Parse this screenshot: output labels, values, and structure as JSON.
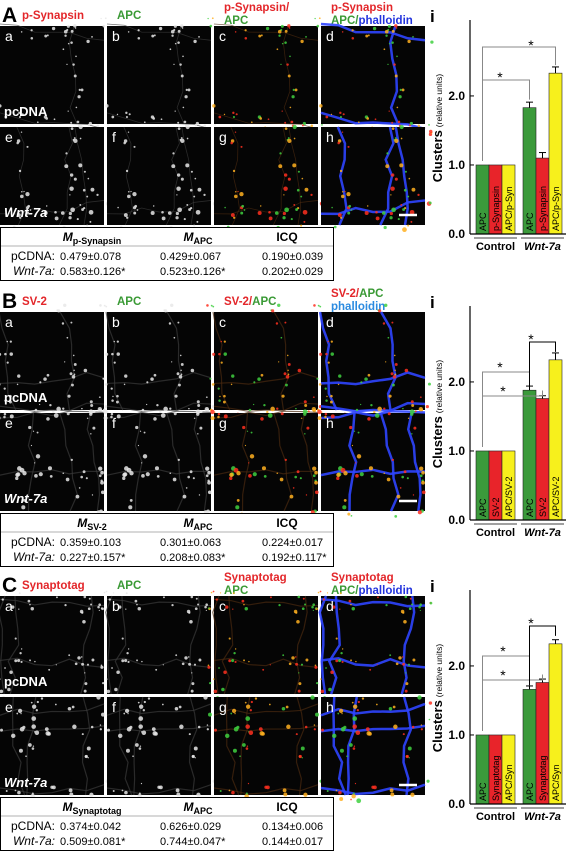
{
  "panels": [
    {
      "letter": "A",
      "chart_letter": "i",
      "columns": [
        [
          [
            {
              "text": "p-Synapsin",
              "color": "#e3262a"
            }
          ]
        ],
        [
          [
            {
              "text": "APC",
              "color": "#3a9a35"
            }
          ]
        ],
        [
          [
            {
              "text": "p-Synapsin/",
              "color": "#e3262a"
            }
          ],
          [
            {
              "text": "APC",
              "color": "#3a9a35"
            }
          ]
        ],
        [
          [
            {
              "text": "p-Synapsin",
              "color": "#e3262a"
            }
          ],
          [
            {
              "text": "APC/",
              "color": "#3a9a35"
            },
            {
              "text": "phalloidin",
              "color": "#2233dd"
            }
          ]
        ]
      ],
      "images": [
        "a",
        "b",
        "c",
        "d",
        "e",
        "f",
        "g",
        "h"
      ],
      "row_labels": [
        "pcDNA",
        "Wnt-7a"
      ],
      "table": {
        "header": [
          [
            "M",
            "p-Synapsin"
          ],
          [
            "M",
            "APC"
          ],
          [
            "ICQ"
          ]
        ],
        "rows": [
          [
            "pCDNA:",
            "0.479±0.078",
            "0.429±0.067",
            "0.190±0.039"
          ],
          [
            "Wnt-7a:",
            "0.583±0.126*",
            "0.523±0.126*",
            "0.202±0.029"
          ]
        ]
      }
    },
    {
      "letter": "B",
      "chart_letter": "i",
      "columns": [
        [
          [
            {
              "text": "SV-2",
              "color": "#e3262a"
            }
          ]
        ],
        [
          [
            {
              "text": "APC",
              "color": "#3a9a35"
            }
          ]
        ],
        [
          [
            {
              "text": "SV-2/",
              "color": "#e3262a"
            },
            {
              "text": "APC",
              "color": "#3a9a35"
            }
          ]
        ],
        [
          [
            {
              "text": "SV-2/",
              "color": "#e3262a"
            },
            {
              "text": "APC",
              "color": "#3a9a35"
            }
          ],
          [
            {
              "text": "phalloidin",
              "color": "#2b8be0"
            }
          ]
        ]
      ],
      "images": [
        "a",
        "b",
        "c",
        "d",
        "e",
        "f",
        "g",
        "h"
      ],
      "row_labels": [
        "pcDNA",
        "Wnt-7a"
      ],
      "table": {
        "header": [
          [
            "M",
            "SV-2"
          ],
          [
            "M",
            "APC"
          ],
          [
            "ICQ"
          ]
        ],
        "rows": [
          [
            "pCDNA:",
            "0.359±0.103",
            "0.301±0.063",
            "0.224±0.017"
          ],
          [
            "Wnt-7a:",
            "0.227±0.157*",
            "0.208±0.083*",
            "0.192±0.117*"
          ]
        ]
      }
    },
    {
      "letter": "C",
      "chart_letter": "i",
      "columns": [
        [
          [
            {
              "text": "Synaptotag",
              "color": "#e3262a"
            }
          ]
        ],
        [
          [
            {
              "text": "APC",
              "color": "#3a9a35"
            }
          ]
        ],
        [
          [
            {
              "text": "Synaptotag",
              "color": "#e3262a"
            }
          ],
          [
            {
              "text": "APC",
              "color": "#3a9a35"
            }
          ]
        ],
        [
          [
            {
              "text": "Synaptotag",
              "color": "#e3262a"
            }
          ],
          [
            {
              "text": "APC/",
              "color": "#3a9a35"
            },
            {
              "text": "phalloidin",
              "color": "#2233dd"
            }
          ]
        ]
      ],
      "images": [
        "a",
        "b",
        "c",
        "d",
        "e",
        "f",
        "g",
        "h"
      ],
      "row_labels": [
        "pcDNA",
        "Wnt-7a"
      ],
      "table": {
        "header": [
          [
            "M",
            "Synaptotag"
          ],
          [
            "M",
            "APC"
          ],
          [
            "ICQ"
          ]
        ],
        "rows": [
          [
            "pCDNA:",
            "0.374±0.042",
            "0.626±0.029",
            "0.134±0.006"
          ],
          [
            "Wnt-7a:",
            "0.509±0.081*",
            "0.744±0.047*",
            "0.144±0.017"
          ]
        ]
      }
    }
  ],
  "chart_data": [
    {
      "type": "bar",
      "ylabel": "Clusters",
      "ylabel_unit": "(relative units)",
      "categories": [
        "Control",
        "Wnt-7a"
      ],
      "series": [
        {
          "name": "APC",
          "color": "#3b9a3b",
          "values": [
            1.0,
            1.83
          ],
          "errors": [
            null,
            0.08
          ]
        },
        {
          "name": "p-Synapsin",
          "color": "#e8242a",
          "values": [
            1.0,
            1.1
          ],
          "errors": [
            null,
            0.08
          ]
        },
        {
          "name": "APC/p-Syn",
          "color": "#f7f01c",
          "values": [
            1.0,
            2.33
          ],
          "errors": [
            null,
            0.09
          ]
        }
      ],
      "ylim": [
        0,
        3.1
      ],
      "yticks": [
        {
          "value": 0,
          "label": "0.0"
        },
        {
          "value": 1,
          "label": "1.0"
        },
        {
          "value": 2,
          "label": "2.0"
        }
      ],
      "annotations": [
        "*",
        "*"
      ]
    },
    {
      "type": "bar",
      "ylabel": "Clusters",
      "ylabel_unit": "(relative units)",
      "categories": [
        "Control",
        "Wnt-7a"
      ],
      "series": [
        {
          "name": "APC",
          "color": "#3b9a3b",
          "values": [
            1.0,
            1.88
          ],
          "errors": [
            null,
            0.06
          ]
        },
        {
          "name": "SV-2",
          "color": "#e8242a",
          "values": [
            1.0,
            1.76
          ],
          "errors": [
            null,
            0.04
          ]
        },
        {
          "name": "APC/SV-2",
          "color": "#f7f01c",
          "values": [
            1.0,
            2.32
          ],
          "errors": [
            null,
            0.1
          ]
        }
      ],
      "ylim": [
        0,
        3.1
      ],
      "yticks": [
        {
          "value": 0,
          "label": "0.0"
        },
        {
          "value": 1,
          "label": "1.0"
        },
        {
          "value": 2,
          "label": "2.0"
        }
      ],
      "annotations": [
        "*",
        "*",
        "*"
      ]
    },
    {
      "type": "bar",
      "ylabel": "Clusters",
      "ylabel_unit": "(relative units)",
      "categories": [
        "Control",
        "Wnt-7a"
      ],
      "series": [
        {
          "name": "APC",
          "color": "#3b9a3b",
          "values": [
            1.0,
            1.66
          ],
          "errors": [
            null,
            0.05
          ]
        },
        {
          "name": "Synaptotag",
          "color": "#e8242a",
          "values": [
            1.0,
            1.76
          ],
          "errors": [
            null,
            0.05
          ]
        },
        {
          "name": "APC/Syn",
          "color": "#f7f01c",
          "values": [
            1.0,
            2.32
          ],
          "errors": [
            null,
            0.06
          ]
        }
      ],
      "ylim": [
        0,
        3.1
      ],
      "yticks": [
        {
          "value": 0,
          "label": "0.0"
        },
        {
          "value": 1,
          "label": "1.0"
        },
        {
          "value": 2,
          "label": "2.0"
        }
      ],
      "annotations": [
        "*",
        "*",
        "*"
      ]
    }
  ]
}
